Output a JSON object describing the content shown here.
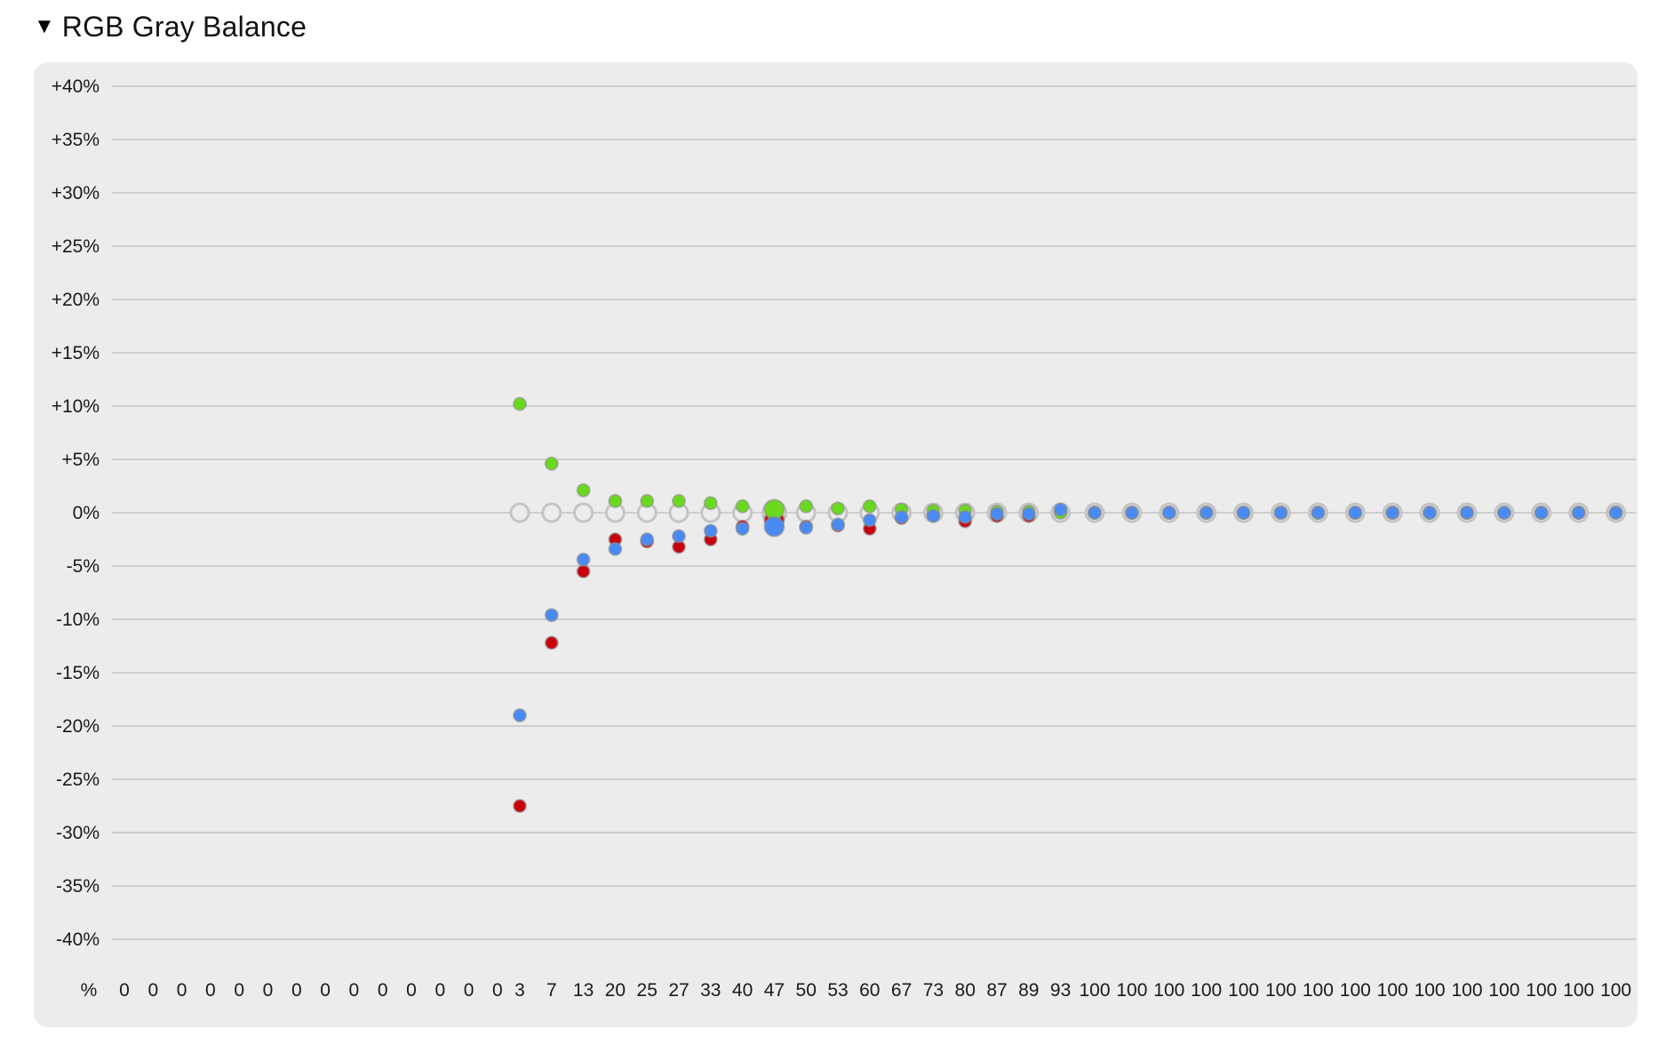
{
  "section": {
    "toggle_icon": "triangle-down-icon",
    "toggle_glyph": "▼",
    "title": "RGB Gray Balance"
  },
  "chart_data": {
    "type": "scatter",
    "title": "RGB Gray Balance",
    "xlabel": "%",
    "ylabel": "",
    "ylim": [
      -40,
      40
    ],
    "grid": true,
    "y_ticks": [
      "+40%",
      "+35%",
      "+30%",
      "+25%",
      "+20%",
      "+15%",
      "+10%",
      "+5%",
      "0%",
      "-5%",
      "-10%",
      "-15%",
      "-20%",
      "-25%",
      "-30%",
      "-35%",
      "-40%"
    ],
    "x_unit_label": "%",
    "categories": [
      "0",
      "0",
      "0",
      "0",
      "0",
      "0",
      "0",
      "0",
      "0",
      "0",
      "0",
      "0",
      "0",
      "0",
      "3",
      "7",
      "13",
      "20",
      "25",
      "27",
      "33",
      "40",
      "47",
      "50",
      "53",
      "60",
      "67",
      "73",
      "80",
      "87",
      "89",
      "93",
      "100",
      "100",
      "100",
      "100",
      "100",
      "100",
      "100",
      "100",
      "100",
      "100",
      "100",
      "100",
      "100",
      "100",
      "100"
    ],
    "highlight_index": 22,
    "colors": {
      "reference": "#c4c4c4",
      "red": "#c8000a",
      "green": "#6ad91e",
      "blue": "#4a8af4",
      "grid": "#bdbdbd",
      "panel": "#ececec"
    },
    "series": [
      {
        "key": "reference",
        "values": [
          null,
          null,
          null,
          null,
          null,
          null,
          null,
          null,
          null,
          null,
          null,
          null,
          null,
          null,
          0,
          0,
          0,
          0,
          0,
          0,
          0,
          0,
          0,
          0,
          0,
          0,
          0,
          0,
          0,
          0,
          0,
          0,
          0,
          0,
          0,
          0,
          0,
          0,
          0,
          0,
          0,
          0,
          0,
          0,
          0,
          0,
          0
        ]
      },
      {
        "key": "red",
        "values": [
          null,
          null,
          null,
          null,
          null,
          null,
          null,
          null,
          null,
          null,
          null,
          null,
          null,
          null,
          -27.5,
          -12.2,
          -5.5,
          -2.5,
          -2.7,
          -3.2,
          -2.5,
          -1.3,
          -0.7,
          -1.3,
          -1.2,
          -1.5,
          -0.5,
          -0.2,
          -0.8,
          -0.3,
          -0.3,
          0.1,
          0,
          0,
          0,
          0,
          0,
          0,
          0,
          0,
          0,
          0,
          0,
          0,
          0,
          0,
          0
        ]
      },
      {
        "key": "green",
        "values": [
          null,
          null,
          null,
          null,
          null,
          null,
          null,
          null,
          null,
          null,
          null,
          null,
          null,
          null,
          10.2,
          4.6,
          2.1,
          1.1,
          1.1,
          1.1,
          0.9,
          0.6,
          0.3,
          0.6,
          0.4,
          0.6,
          0.3,
          0.2,
          0.2,
          0.1,
          0.1,
          0,
          0,
          0,
          0,
          0,
          0,
          0,
          0,
          0,
          0,
          0,
          0,
          0,
          0,
          0,
          0
        ]
      },
      {
        "key": "blue",
        "values": [
          null,
          null,
          null,
          null,
          null,
          null,
          null,
          null,
          null,
          null,
          null,
          null,
          null,
          null,
          -19,
          -9.6,
          -4.4,
          -3.4,
          -2.5,
          -2.2,
          -1.7,
          -1.5,
          -1.3,
          -1.4,
          -1.1,
          -0.7,
          -0.4,
          -0.3,
          -0.4,
          -0.1,
          -0.1,
          0.3,
          0,
          0,
          0,
          0,
          0,
          0,
          0,
          0,
          0,
          0,
          0,
          0,
          0,
          0,
          0
        ]
      }
    ]
  }
}
